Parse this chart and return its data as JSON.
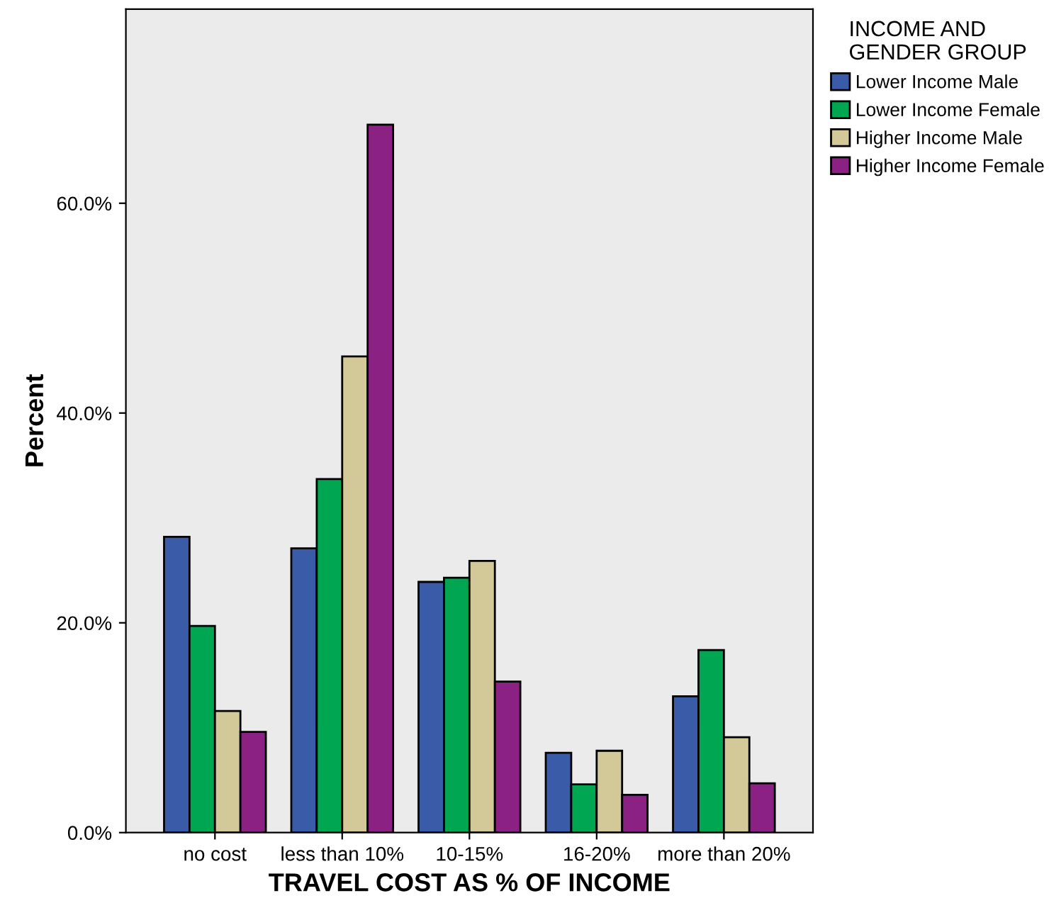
{
  "chart_data": {
    "type": "bar",
    "xlabel": "TRAVEL COST AS % OF INCOME",
    "ylabel": "Percent",
    "legend_title": "INCOME AND\nGENDER GROUP",
    "categories": [
      "no cost",
      "less than 10%",
      "10-15%",
      "16-20%",
      "more than 20%"
    ],
    "series": [
      {
        "name": "Lower Income Male",
        "color": "#3a5ba8",
        "values": [
          28.2,
          27.1,
          23.9,
          7.6,
          13.0
        ]
      },
      {
        "name": "Lower Income Female",
        "color": "#00a651",
        "values": [
          19.7,
          33.7,
          24.3,
          4.6,
          17.4
        ]
      },
      {
        "name": "Higher Income Male",
        "color": "#d3c897",
        "values": [
          11.6,
          45.4,
          25.9,
          7.8,
          9.1
        ]
      },
      {
        "name": "Higher Income Female",
        "color": "#8b2182",
        "values": [
          9.6,
          67.5,
          14.4,
          3.6,
          4.7
        ]
      }
    ],
    "ylim": [
      0,
      78.5
    ],
    "yticks": [
      {
        "value": 0,
        "label": "0.0%"
      },
      {
        "value": 20,
        "label": "20.0%"
      },
      {
        "value": 40,
        "label": "40.0%"
      },
      {
        "value": 60,
        "label": "60.0%"
      }
    ],
    "grid": false,
    "legend": "top right"
  }
}
